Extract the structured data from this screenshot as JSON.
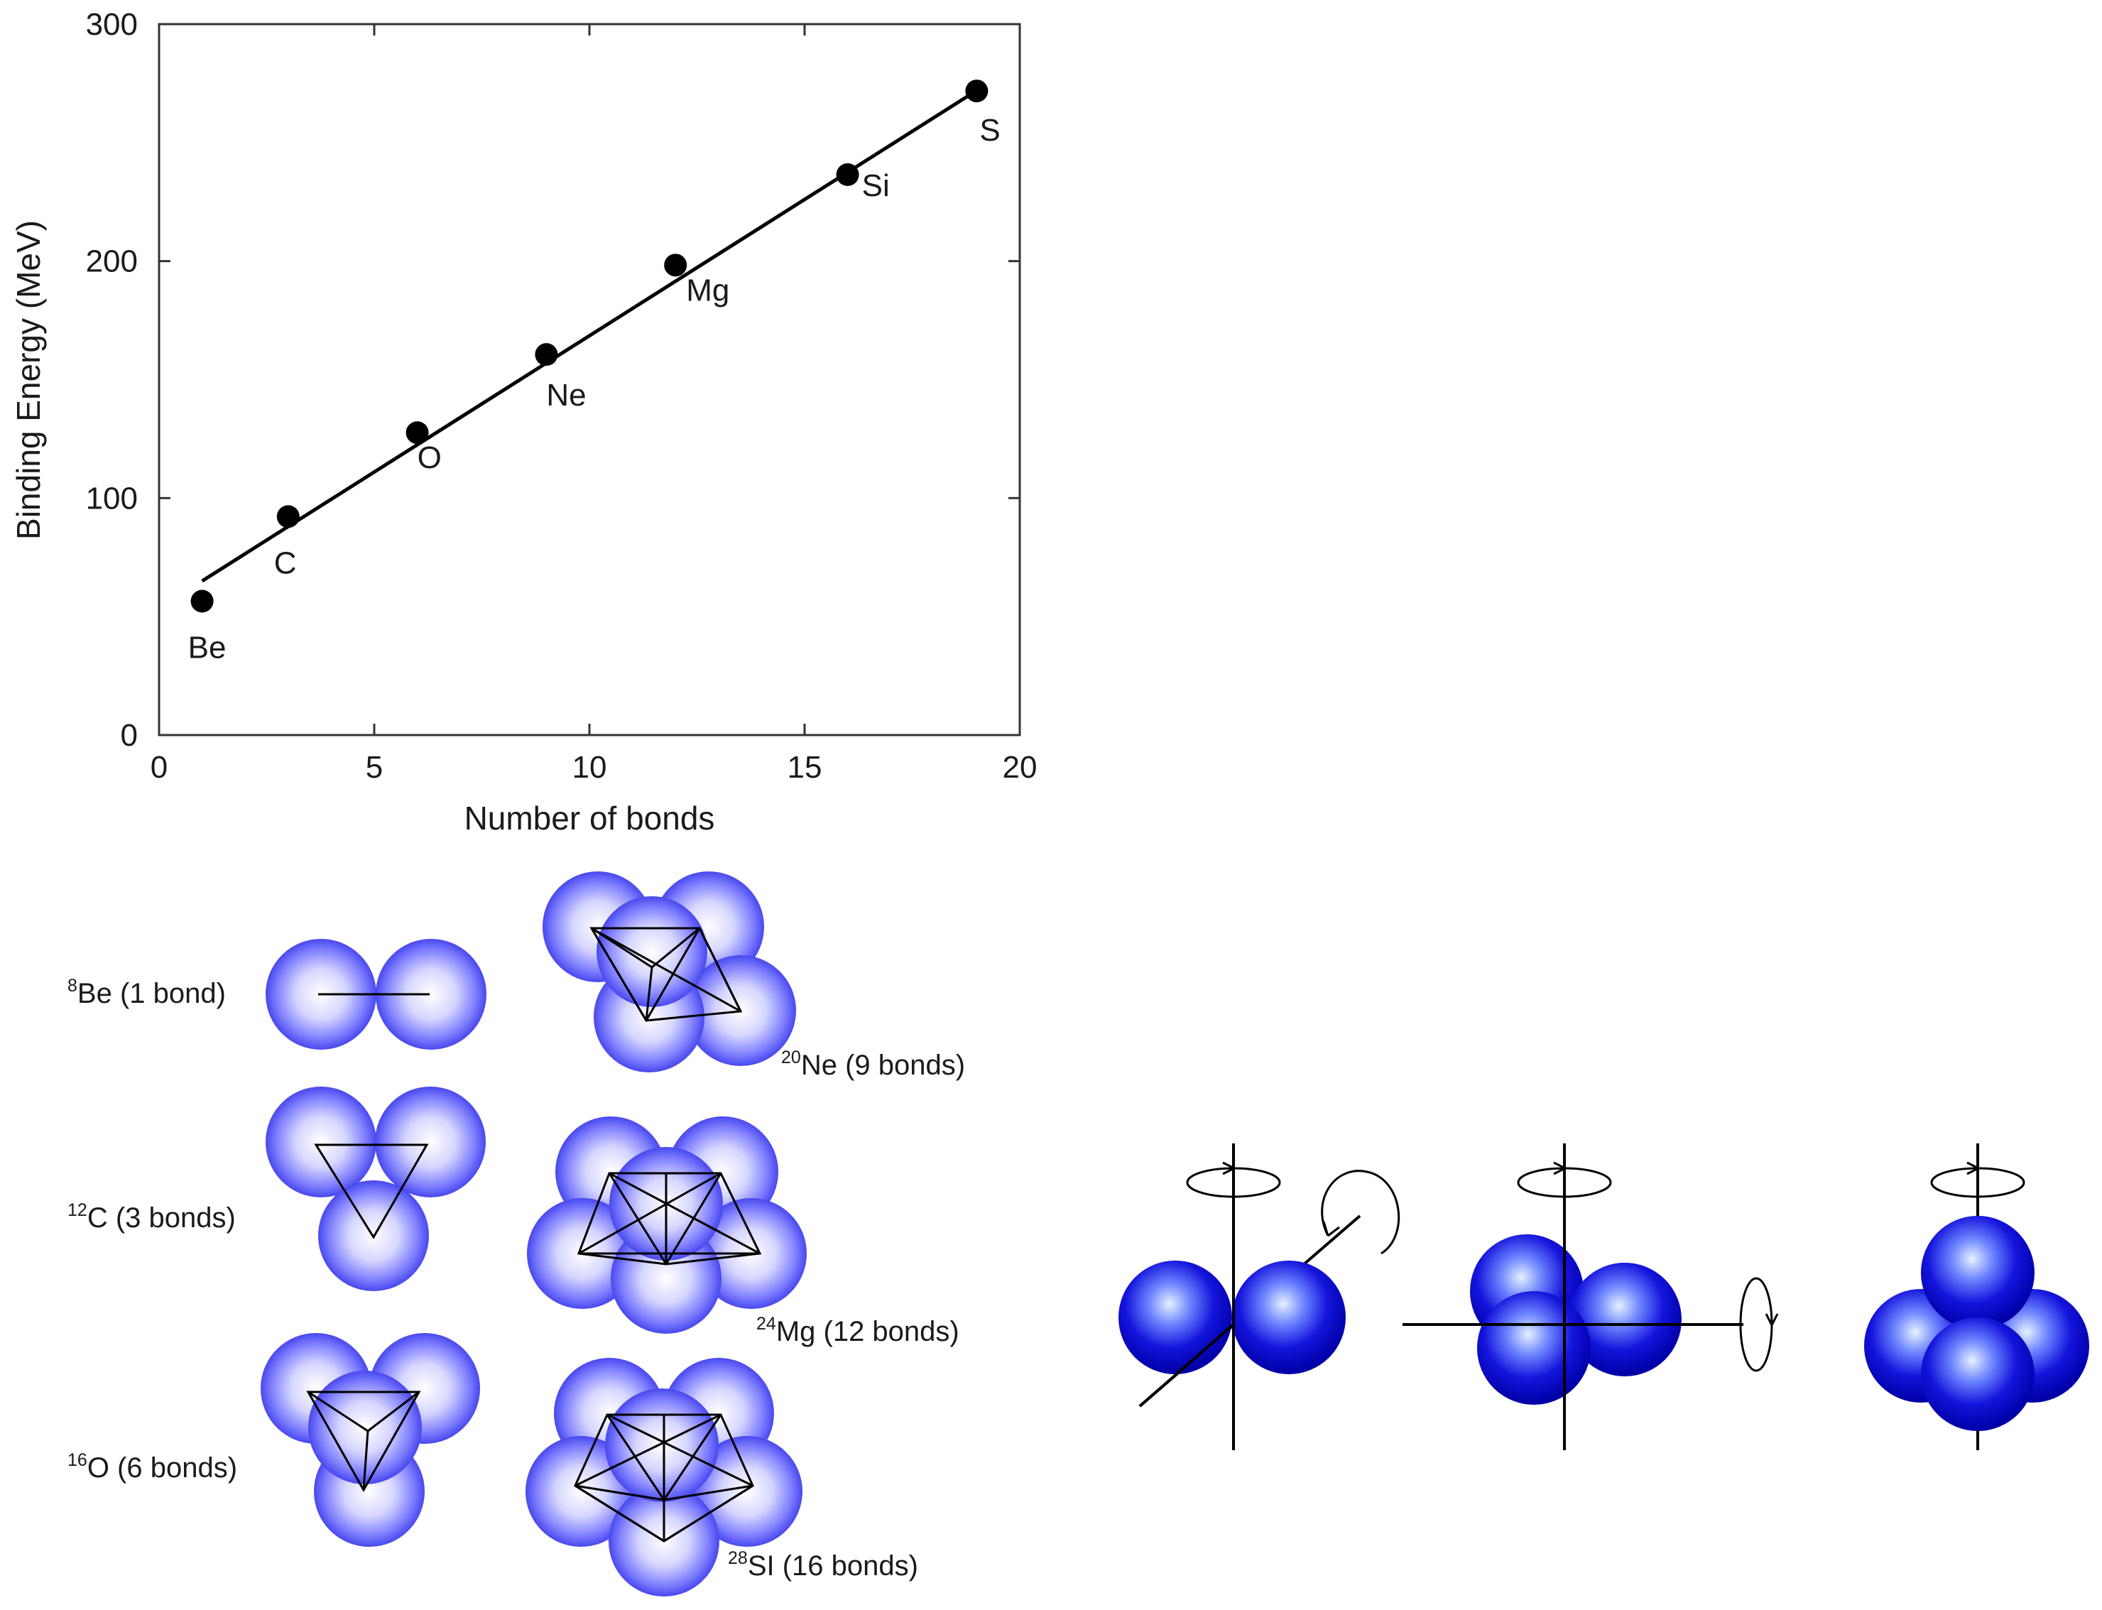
{
  "chart_data": {
    "type": "scatter",
    "xlabel": "Number of bonds",
    "ylabel": "Binding Energy (MeV)",
    "xlim": [
      0,
      20
    ],
    "ylim": [
      0,
      300
    ],
    "xticks": [
      0,
      5,
      10,
      15,
      20
    ],
    "yticks": [
      0,
      100,
      200,
      300
    ],
    "grid": false,
    "points": [
      {
        "label": "Be",
        "x": 1,
        "y": 56.5
      },
      {
        "label": "C",
        "x": 3,
        "y": 92.2
      },
      {
        "label": "O",
        "x": 6,
        "y": 127.6
      },
      {
        "label": "Ne",
        "x": 9,
        "y": 160.6
      },
      {
        "label": "Mg",
        "x": 12,
        "y": 198.3
      },
      {
        "label": "Si",
        "x": 16,
        "y": 236.5
      },
      {
        "label": "S",
        "x": 19,
        "y": 271.8
      }
    ],
    "fit_line": {
      "x": [
        1,
        19
      ],
      "y": [
        65,
        272
      ]
    }
  },
  "molecules": [
    {
      "id": "be",
      "mass": "8",
      "symbol": "Be",
      "bonds": " (1 bond)"
    },
    {
      "id": "ne",
      "mass": "20",
      "symbol": "Ne",
      "bonds": " (9 bonds)"
    },
    {
      "id": "c",
      "mass": "12",
      "symbol": "C",
      "bonds": " (3 bonds)"
    },
    {
      "id": "mg",
      "mass": "24",
      "symbol": "Mg",
      "bonds": " (12 bonds)"
    },
    {
      "id": "o",
      "mass": "16",
      "symbol": "O",
      "bonds": " (6 bonds)"
    },
    {
      "id": "si",
      "mass": "28",
      "symbol": "SI",
      "bonds": " (16 bonds)"
    }
  ],
  "colors": {
    "marker": "#000000",
    "sphere_light": "#ffffff",
    "sphere_mid": "#9d9dff",
    "sphere_edge": "#5050f0",
    "sphere_solid_light": "#d8ecff",
    "sphere_solid_edge": "#0000b4"
  },
  "icons": [
    "rotation-arrow-icon"
  ]
}
